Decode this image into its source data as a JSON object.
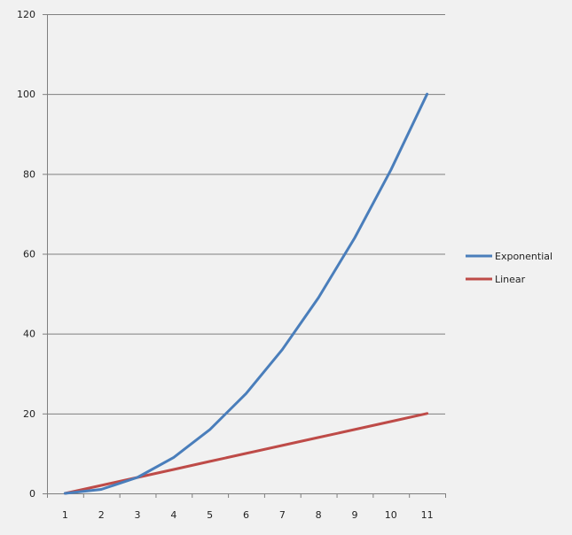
{
  "chart_data": {
    "type": "line",
    "title": "",
    "xlabel": "",
    "ylabel": "",
    "categories": [
      "1",
      "2",
      "3",
      "4",
      "5",
      "6",
      "7",
      "8",
      "9",
      "10",
      "11"
    ],
    "series": [
      {
        "name": "Exponential",
        "color": "#4a7ebb",
        "values": [
          0,
          1,
          4,
          9,
          16,
          25,
          36,
          49,
          64,
          81,
          100
        ]
      },
      {
        "name": "Linear",
        "color": "#be4b48",
        "values": [
          0,
          2,
          4,
          6,
          8,
          10,
          12,
          14,
          16,
          18,
          20
        ]
      }
    ],
    "ylim": [
      0,
      120
    ],
    "yticks": [
      0,
      20,
      40,
      60,
      80,
      100,
      120
    ],
    "grid": "horizontal",
    "legend_position": "right",
    "background": "#f1f1f1",
    "gridline_color": "#7f7f7f"
  }
}
